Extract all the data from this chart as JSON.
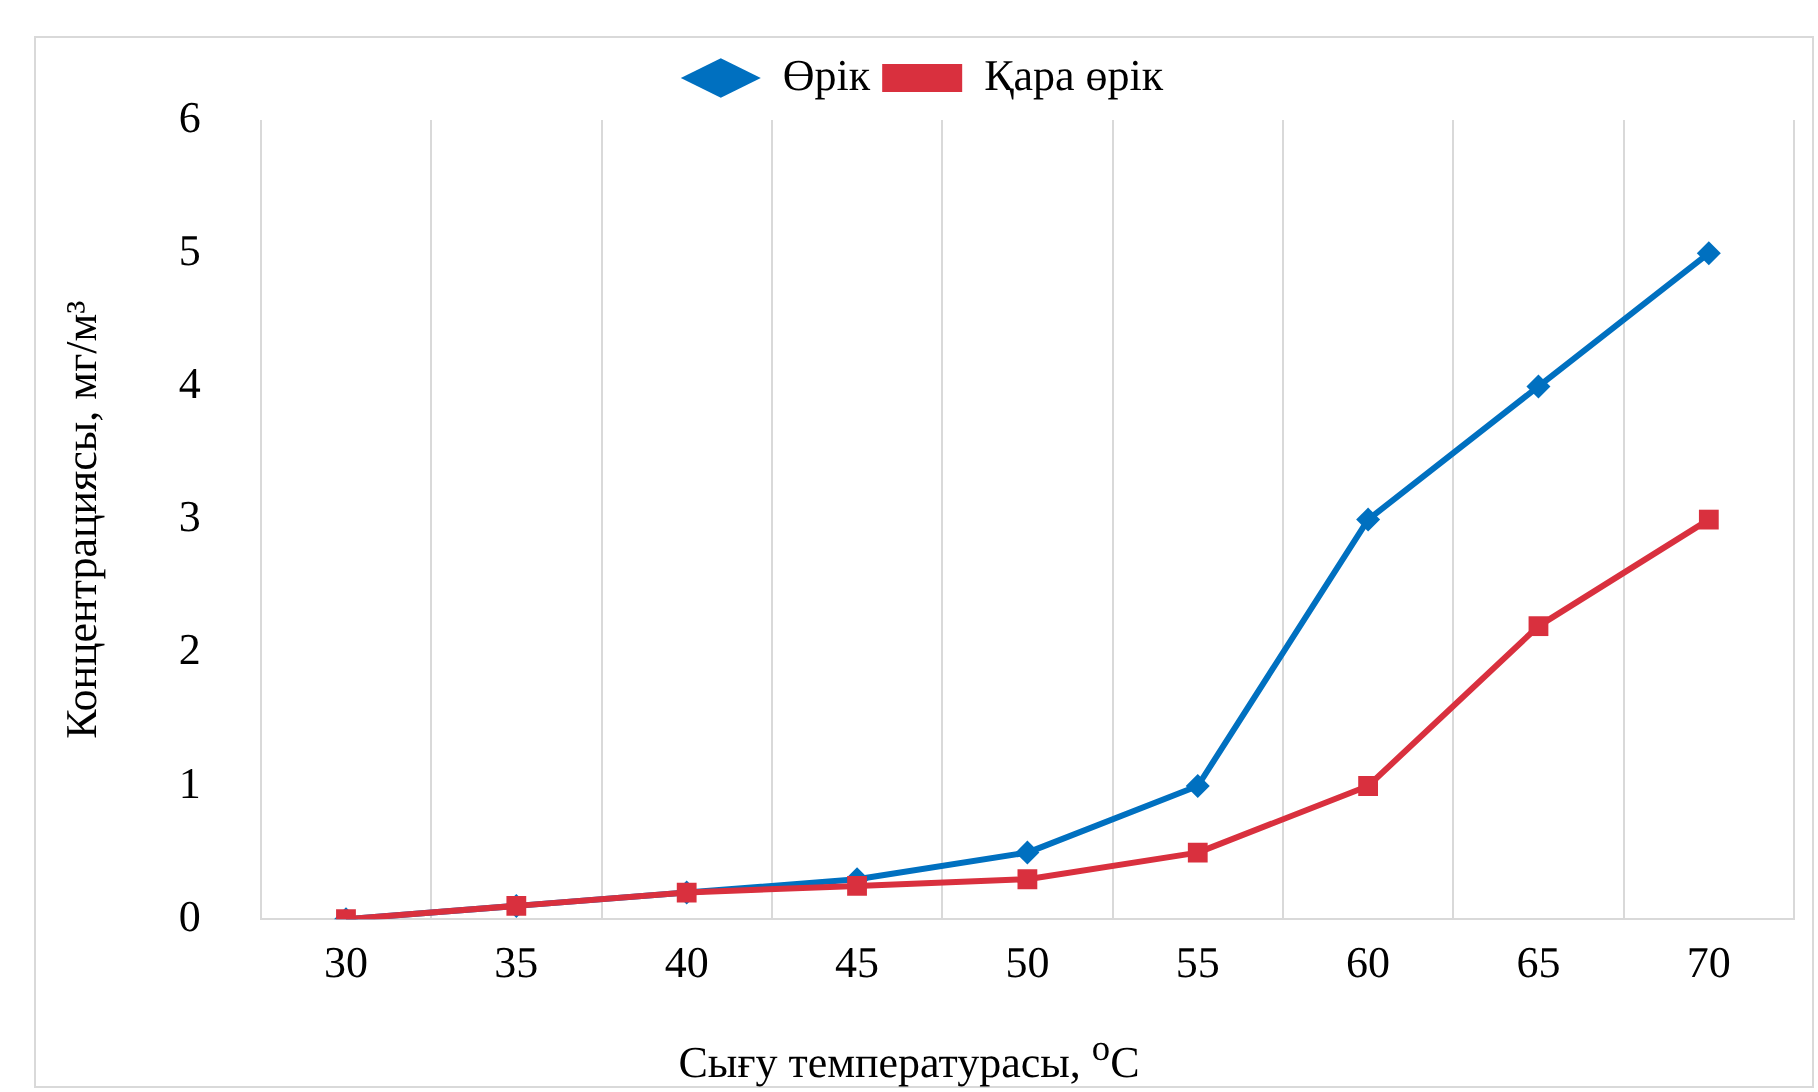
{
  "chart_data": {
    "type": "line",
    "xlabel": "Сығу температурасы, $^{o}$C",
    "ylabel": "Концентрациясы, мг/м³",
    "categories": [
      "30",
      "35",
      "40",
      "45",
      "50",
      "55",
      "60",
      "65",
      "70"
    ],
    "series": [
      {
        "name": "Өрік",
        "color": "#0070c0",
        "marker": "diamond",
        "values": [
          0,
          0.1,
          0.2,
          0.3,
          0.5,
          1,
          3,
          4,
          5
        ]
      },
      {
        "name": "Қара өрік",
        "color": "#d9303e",
        "marker": "square",
        "values": [
          0,
          0.1,
          0.2,
          0.25,
          0.3,
          0.5,
          1,
          2.2,
          3
        ]
      }
    ],
    "ylim": [
      0,
      6
    ],
    "yticks": [
      0,
      1,
      2,
      3,
      4,
      5,
      6
    ],
    "grid": "x",
    "legend": "top",
    "line_style": "solid"
  }
}
